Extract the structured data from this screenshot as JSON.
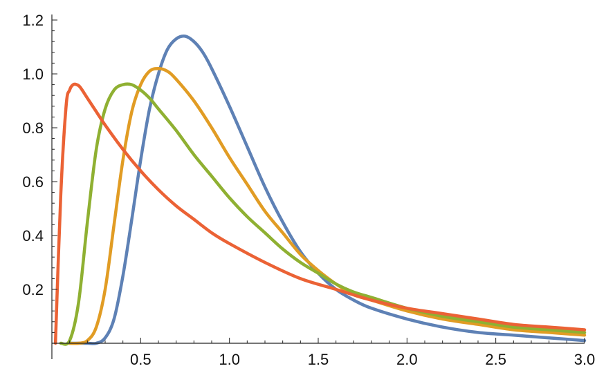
{
  "chart_data": {
    "type": "line",
    "title": "",
    "xlabel": "",
    "ylabel": "",
    "xlim": [
      0,
      3.0
    ],
    "ylim": [
      0,
      1.2
    ],
    "x_ticks": [
      0.5,
      1.0,
      1.5,
      2.0,
      2.5,
      3.0
    ],
    "x_tick_labels": [
      "0.5",
      "1.0",
      "1.5",
      "2.0",
      "2.5",
      "3.0"
    ],
    "y_ticks": [
      0.2,
      0.4,
      0.6,
      0.8,
      1.0,
      1.2
    ],
    "y_tick_labels": [
      "0.2",
      "0.4",
      "0.6",
      "0.8",
      "1.0",
      "1.2"
    ],
    "grid": false,
    "legend": "none",
    "series": [
      {
        "color": "#5e81b5",
        "x": [
          0.1,
          0.2,
          0.25,
          0.3,
          0.35,
          0.4,
          0.45,
          0.5,
          0.55,
          0.6,
          0.65,
          0.7,
          0.75,
          0.8,
          0.85,
          0.9,
          1.0,
          1.1,
          1.2,
          1.3,
          1.4,
          1.5,
          1.6,
          1.7,
          1.8,
          2.0,
          2.2,
          2.4,
          2.6,
          2.8,
          3.0
        ],
        "y": [
          0.0,
          0.0,
          0.0,
          0.02,
          0.09,
          0.25,
          0.46,
          0.68,
          0.87,
          1.0,
          1.09,
          1.13,
          1.14,
          1.12,
          1.08,
          1.02,
          0.88,
          0.73,
          0.58,
          0.45,
          0.34,
          0.26,
          0.2,
          0.16,
          0.13,
          0.09,
          0.06,
          0.04,
          0.03,
          0.02,
          0.01
        ]
      },
      {
        "color": "#e19c24",
        "x": [
          0.1,
          0.15,
          0.2,
          0.25,
          0.3,
          0.35,
          0.4,
          0.45,
          0.5,
          0.55,
          0.6,
          0.65,
          0.7,
          0.8,
          0.9,
          1.0,
          1.1,
          1.2,
          1.3,
          1.4,
          1.5,
          1.6,
          1.7,
          1.8,
          2.0,
          2.2,
          2.4,
          2.6,
          2.8,
          3.0
        ],
        "y": [
          0.0,
          0.0,
          0.01,
          0.06,
          0.2,
          0.44,
          0.68,
          0.86,
          0.96,
          1.01,
          1.02,
          1.01,
          0.98,
          0.9,
          0.8,
          0.69,
          0.59,
          0.49,
          0.41,
          0.33,
          0.27,
          0.22,
          0.18,
          0.16,
          0.12,
          0.09,
          0.07,
          0.05,
          0.04,
          0.03
        ]
      },
      {
        "color": "#8fb032",
        "x": [
          0.05,
          0.1,
          0.15,
          0.2,
          0.25,
          0.3,
          0.35,
          0.4,
          0.45,
          0.5,
          0.55,
          0.6,
          0.7,
          0.8,
          0.9,
          1.0,
          1.1,
          1.2,
          1.3,
          1.4,
          1.5,
          1.6,
          1.7,
          1.8,
          2.0,
          2.2,
          2.4,
          2.6,
          2.8,
          3.0
        ],
        "y": [
          0.0,
          0.01,
          0.15,
          0.45,
          0.72,
          0.87,
          0.94,
          0.96,
          0.96,
          0.94,
          0.91,
          0.87,
          0.79,
          0.7,
          0.62,
          0.54,
          0.47,
          0.41,
          0.35,
          0.3,
          0.26,
          0.22,
          0.19,
          0.17,
          0.13,
          0.1,
          0.08,
          0.06,
          0.05,
          0.04
        ]
      },
      {
        "color": "#eb6235",
        "x": [
          0.02,
          0.05,
          0.08,
          0.1,
          0.12,
          0.14,
          0.16,
          0.2,
          0.25,
          0.3,
          0.4,
          0.5,
          0.6,
          0.7,
          0.8,
          0.9,
          1.0,
          1.2,
          1.4,
          1.6,
          1.8,
          2.0,
          2.2,
          2.4,
          2.6,
          2.8,
          3.0
        ],
        "y": [
          0.0,
          0.55,
          0.88,
          0.94,
          0.96,
          0.96,
          0.95,
          0.91,
          0.86,
          0.81,
          0.72,
          0.64,
          0.57,
          0.51,
          0.46,
          0.41,
          0.37,
          0.3,
          0.24,
          0.2,
          0.16,
          0.13,
          0.11,
          0.09,
          0.07,
          0.06,
          0.05
        ]
      }
    ]
  }
}
